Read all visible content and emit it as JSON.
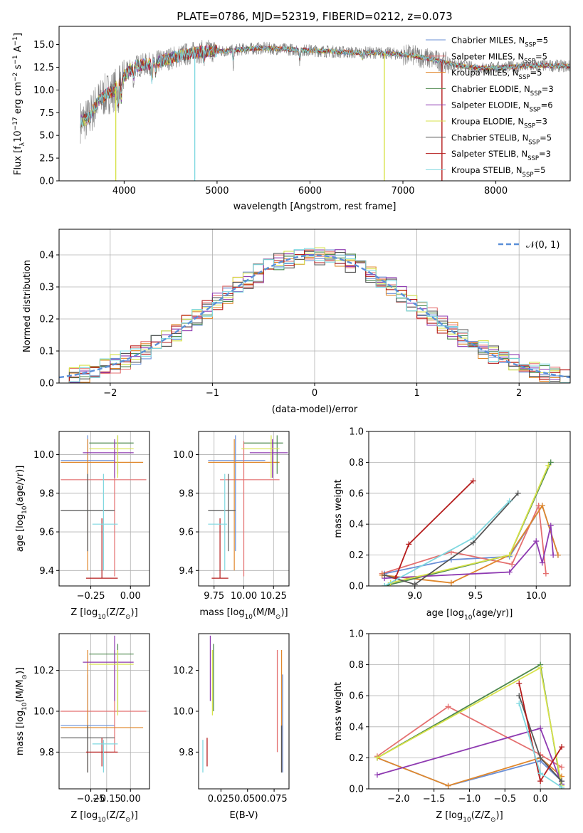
{
  "figure_title": "PLATE=0786, MJD=52319, FIBERID=0212, z=0.073",
  "colors": {
    "Chabrier MILES": "#6a8fd6",
    "Salpeter MILES": "#e46f6f",
    "Kroupa MILES": "#e0872b",
    "Chabrier ELODIE": "#4f8a4f",
    "Salpeter ELODIE": "#8e3ab1",
    "Kroupa ELODIE": "#d7e24a",
    "Chabrier STELIB": "#555555",
    "Salpeter STELIB": "#b51c1c",
    "Kroupa STELIB": "#7fd8e0",
    "observed": "#7f7f7f",
    "normal": "#5a8fd8",
    "pink": "#e67fb8"
  },
  "chart_data": [
    {
      "id": "spectrum",
      "type": "line",
      "title": "PLATE=0786, MJD=52319, FIBERID=0212, z=0.073",
      "xlabel": "wavelength [Angstrom, rest frame]",
      "ylabel": "Flux [f",
      "xlim": [
        3300,
        8800
      ],
      "ylim": [
        0,
        17
      ],
      "xticks": [
        4000,
        5000,
        6000,
        7000,
        8000
      ],
      "yticks": [
        0.0,
        2.5,
        5.0,
        7.5,
        10.0,
        12.5,
        15.0
      ],
      "ytick_labels": [
        "0.0",
        "2.5",
        "5.0",
        "7.5",
        "10.0",
        "12.5",
        "15.0"
      ],
      "ylabel_parts": [
        "Flux [f",
        "λ",
        "10",
        "−17",
        " erg cm",
        "−2",
        " s",
        "−1",
        " A",
        "−1",
        "]"
      ],
      "continuum": [
        [
          3530,
          6.5
        ],
        [
          3620,
          6.9
        ],
        [
          3700,
          8.5
        ],
        [
          3800,
          9.5
        ],
        [
          3900,
          10.0
        ],
        [
          4000,
          11.5
        ],
        [
          4100,
          12.6
        ],
        [
          4300,
          12.9
        ],
        [
          4500,
          13.5
        ],
        [
          4700,
          14.0
        ],
        [
          4900,
          14.3
        ],
        [
          5100,
          14.3
        ],
        [
          5300,
          14.5
        ],
        [
          5500,
          14.6
        ],
        [
          5700,
          14.5
        ],
        [
          5900,
          14.4
        ],
        [
          6100,
          14.3
        ],
        [
          6300,
          14.2
        ],
        [
          6500,
          14.1
        ],
        [
          6700,
          14.1
        ],
        [
          6900,
          14.0
        ],
        [
          7100,
          13.8
        ],
        [
          7300,
          13.4
        ],
        [
          7500,
          12.9
        ],
        [
          7700,
          12.5
        ],
        [
          7900,
          12.4
        ],
        [
          8100,
          12.5
        ],
        [
          8300,
          12.6
        ],
        [
          8500,
          12.7
        ],
        [
          8800,
          12.6
        ]
      ],
      "legend_position": "top-right",
      "legend": [
        "Chabrier MILES, N",
        "Salpeter MILES, N",
        "Kroupa MILES, N",
        "Chabrier ELODIE, N",
        "Salpeter ELODIE, N",
        "Kroupa ELODIE, N",
        "Chabrier STELIB, N",
        "Salpeter STELIB, N",
        "Kroupa STELIB, N"
      ],
      "legend_sub": "SSP",
      "legend_n": [
        "=5",
        "=5",
        "=5",
        "=3",
        "=6",
        "=3",
        "=5",
        "=3",
        "=5"
      ]
    },
    {
      "id": "residuals",
      "type": "bar",
      "xlabel": "(data-model)/error",
      "ylabel": "Normed distribution",
      "xlim": [
        -2.5,
        2.5
      ],
      "ylim": [
        0,
        0.48
      ],
      "xticks": [
        -2,
        -1,
        0,
        1,
        2
      ],
      "xtick_labels": [
        "−2",
        "−1",
        "0",
        "1",
        "2"
      ],
      "yticks": [
        0.0,
        0.1,
        0.2,
        0.3,
        0.4
      ],
      "ytick_labels": [
        "0.0",
        "0.1",
        "0.2",
        "0.3",
        "0.4"
      ],
      "bin_width": 0.1,
      "legend": "𝒩(0, 1)",
      "legend_position": "top-right"
    },
    {
      "id": "z-age",
      "type": "scatter",
      "xlabel": "Z [log",
      "xlabel_parts": [
        "Z [log",
        "10",
        "(Z/Z",
        "⊙",
        ")]"
      ],
      "ylabel": "age  [log",
      "ylabel_parts": [
        "age  [log",
        "10",
        "(age/yr)]"
      ],
      "xlim": [
        -0.45,
        0.12
      ],
      "ylim": [
        9.32,
        10.12
      ],
      "xticks": [
        -0.25,
        0.0
      ],
      "xtick_labels": [
        "−0.25",
        "0.00"
      ],
      "yticks": [
        9.4,
        9.6,
        9.8,
        10.0
      ],
      "ytick_labels": [
        "9.4",
        "9.6",
        "9.8",
        "10.0"
      ]
    },
    {
      "id": "mass-age",
      "type": "scatter",
      "xlabel": "mass [log",
      "xlabel_parts": [
        "mass [log",
        "10",
        "(M/M",
        "⊙",
        ")]"
      ],
      "xlim": [
        9.62,
        10.38
      ],
      "ylim": [
        9.32,
        10.12
      ],
      "xticks": [
        9.75,
        10.0,
        10.25
      ],
      "xtick_labels": [
        "9.75",
        "10.00",
        "10.25"
      ],
      "yticks": [
        9.4,
        9.6,
        9.8,
        10.0
      ],
      "ytick_labels": [
        "9.4",
        "9.6",
        "9.8",
        "10.0"
      ]
    },
    {
      "id": "age-weight",
      "type": "line",
      "xlabel": "age  [log",
      "xlabel_parts": [
        "age  [log",
        "10",
        "(age/yr)]"
      ],
      "ylabel": "mass weight",
      "xlim": [
        8.62,
        10.28
      ],
      "ylim": [
        0,
        1
      ],
      "xticks": [
        9.0,
        9.5,
        10.0
      ],
      "xtick_labels": [
        "9.0",
        "9.5",
        "10.0"
      ],
      "yticks": [
        0.0,
        0.2,
        0.4,
        0.6,
        0.8,
        1.0
      ],
      "ytick_labels": [
        "0.0",
        "0.2",
        "0.4",
        "0.6",
        "0.8",
        "1.0"
      ]
    },
    {
      "id": "z-mass",
      "type": "scatter",
      "xlabel": "Z [log",
      "xlabel_parts": [
        "Z [log",
        "10",
        "(Z/Z",
        "⊙",
        ")]"
      ],
      "ylabel": "mass [log",
      "ylabel_parts": [
        "mass [log",
        "10",
        "(M/M",
        "⊙",
        ")]"
      ],
      "xlim": [
        -0.45,
        0.12
      ],
      "ylim": [
        9.62,
        10.38
      ],
      "xticks": [
        -0.25,
        -0.15,
        0.0
      ],
      "xtick_labels": [
        "−0.25",
        "−0.15",
        "0.00"
      ],
      "yticks": [
        9.8,
        10.0,
        10.2
      ],
      "ytick_labels": [
        "9.8",
        "10.0",
        "10.2"
      ]
    },
    {
      "id": "ebv-mass",
      "type": "scatter",
      "xlabel": "E(B-V)",
      "xlim": [
        0.004,
        0.089
      ],
      "ylim": [
        9.62,
        10.38
      ],
      "xticks": [
        0.025,
        0.05,
        0.075
      ],
      "xtick_labels": [
        "0.025",
        "0.050",
        "0.075"
      ],
      "yticks": [
        9.8,
        10.0,
        10.2
      ],
      "ytick_labels": [
        "9.8",
        "10.0",
        "10.2"
      ]
    },
    {
      "id": "z-weight",
      "type": "line",
      "xlabel": "Z [log",
      "xlabel_parts": [
        "Z [log",
        "10",
        "(Z/Z",
        "⊙",
        ")]"
      ],
      "ylabel": "mass weight",
      "xlim": [
        -2.42,
        0.42
      ],
      "ylim": [
        0,
        1
      ],
      "xticks": [
        -2.0,
        -1.5,
        -1.0,
        -0.5,
        0.0
      ],
      "xtick_labels": [
        "−2.0",
        "−1.5",
        "−1.0",
        "−0.5",
        "0.0"
      ],
      "yticks": [
        0.0,
        0.2,
        0.4,
        0.6,
        0.8,
        1.0
      ],
      "ytick_labels": [
        "0.0",
        "0.2",
        "0.4",
        "0.6",
        "0.8",
        "1.0"
      ]
    }
  ],
  "models": [
    {
      "name": "Chabrier MILES",
      "Z": -0.27,
      "Zlo": -0.44,
      "Zhi": -0.1,
      "age": 9.97,
      "alo": 9.5,
      "ahi": 10.1,
      "mass": 9.93,
      "mlo": 9.7,
      "mhi": 10.18,
      "ebv": 0.083,
      "elo": 0.071,
      "ehi": 0.087,
      "ages": [
        8.75,
        9.3,
        9.78,
        10.05,
        10.18
      ],
      "aw": [
        0.08,
        0.17,
        0.19,
        0.52,
        0.2
      ],
      "Zs": [
        -2.3,
        -1.3,
        0.0,
        0.3
      ],
      "zw": [
        0.2,
        0.02,
        0.18,
        0.05
      ]
    },
    {
      "name": "Salpeter MILES",
      "Z": -0.1,
      "Zlo": -0.44,
      "Zhi": 0.1,
      "age": 9.87,
      "alo": 9.37,
      "ahi": 10.07,
      "mass": 10.0,
      "mlo": 9.8,
      "mhi": 10.3,
      "ebv": 0.078,
      "elo": 0.071,
      "ehi": 0.087,
      "ages": [
        8.73,
        9.3,
        9.8,
        10.02,
        10.08
      ],
      "aw": [
        0.08,
        0.22,
        0.14,
        0.52,
        0.08
      ],
      "Zs": [
        -2.3,
        -1.3,
        0.0,
        0.3
      ],
      "zw": [
        0.21,
        0.53,
        0.22,
        0.14
      ]
    },
    {
      "name": "Kroupa MILES",
      "Z": -0.27,
      "Zlo": -0.44,
      "Zhi": 0.08,
      "age": 9.96,
      "alo": 9.4,
      "ahi": 10.08,
      "mass": 9.92,
      "mlo": 9.7,
      "mhi": 10.3,
      "ebv": 0.082,
      "elo": 0.071,
      "ehi": 0.087,
      "ages": [
        8.73,
        9.3,
        9.78,
        10.05,
        10.18
      ],
      "aw": [
        0.07,
        0.02,
        0.2,
        0.52,
        0.2
      ],
      "Zs": [
        -2.3,
        -1.3,
        0.0,
        0.3
      ],
      "zw": [
        0.2,
        0.02,
        0.2,
        0.08
      ]
    },
    {
      "name": "Chabrier ELODIE",
      "Z": -0.08,
      "Zlo": -0.26,
      "Zhi": 0.02,
      "age": 10.06,
      "alo": 9.9,
      "ahi": 10.1,
      "mass": 10.28,
      "mlo": 10.0,
      "mhi": 10.33,
      "ebv": 0.018,
      "elo": 0.01,
      "ehi": 0.02,
      "ages": [
        8.75,
        9.78,
        10.12
      ],
      "aw": [
        0.0,
        0.2,
        0.8
      ],
      "Zs": [
        -2.3,
        0.0,
        0.3
      ],
      "zw": [
        0.2,
        0.8,
        0.0
      ]
    },
    {
      "name": "Salpeter ELODIE",
      "Z": -0.1,
      "Zlo": -0.3,
      "Zhi": 0.02,
      "age": 10.01,
      "alo": 9.88,
      "ahi": 10.08,
      "mass": 10.24,
      "mlo": 10.05,
      "mhi": 10.37,
      "ebv": 0.015,
      "elo": 0.008,
      "ehi": 0.022,
      "ages": [
        8.75,
        9.78,
        10.0,
        10.05,
        10.12,
        10.14
      ],
      "aw": [
        0.05,
        0.09,
        0.29,
        0.15,
        0.39,
        0.2
      ],
      "Zs": [
        -2.3,
        0.0,
        0.3
      ],
      "zw": [
        0.09,
        0.39,
        0.03
      ]
    },
    {
      "name": "Kroupa ELODIE",
      "Z": -0.08,
      "Zlo": -0.26,
      "Zhi": 0.02,
      "age": 10.03,
      "alo": 9.88,
      "ahi": 10.1,
      "mass": 10.23,
      "mlo": 9.98,
      "mhi": 10.3,
      "ebv": 0.017,
      "elo": 0.01,
      "ehi": 0.02,
      "ages": [
        8.8,
        9.78,
        10.1
      ],
      "aw": [
        0.02,
        0.2,
        0.78
      ],
      "Zs": [
        -2.3,
        0.0,
        0.3
      ],
      "zw": [
        0.2,
        0.78,
        0.02
      ]
    },
    {
      "name": "Chabrier STELIB",
      "Z": -0.27,
      "Zlo": -0.44,
      "Zhi": -0.1,
      "age": 9.71,
      "alo": 9.5,
      "ahi": 9.9,
      "mass": 9.87,
      "mlo": 9.7,
      "mhi": 9.93,
      "ebv": 0.082,
      "elo": 0.074,
      "ehi": 0.088,
      "ages": [
        8.75,
        9.0,
        9.48,
        9.85
      ],
      "aw": [
        0.07,
        0.01,
        0.28,
        0.6
      ],
      "Zs": [
        -0.3,
        0.0,
        0.3
      ],
      "zw": [
        0.6,
        0.2,
        0.05
      ]
    },
    {
      "name": "Salpeter STELIB",
      "Z": -0.18,
      "Zlo": -0.28,
      "Zhi": -0.08,
      "age": 9.36,
      "alo": 9.36,
      "ahi": 9.67,
      "mass": 9.8,
      "mlo": 9.73,
      "mhi": 9.87,
      "ebv": 0.012,
      "elo": 0.007,
      "ehi": 0.02,
      "ages": [
        8.84,
        8.95,
        9.48
      ],
      "aw": [
        0.05,
        0.27,
        0.68
      ],
      "Zs": [
        -0.3,
        0.0,
        0.3
      ],
      "zw": [
        0.68,
        0.05,
        0.27
      ]
    },
    {
      "name": "Kroupa STELIB",
      "Z": -0.17,
      "Zlo": -0.24,
      "Zhi": -0.08,
      "age": 9.64,
      "alo": 9.4,
      "ahi": 9.9,
      "mass": 9.84,
      "mlo": 9.7,
      "mhi": 9.86,
      "ebv": 0.008,
      "elo": 0.004,
      "ehi": 0.014,
      "ages": [
        8.75,
        9.48,
        9.78
      ],
      "aw": [
        0.0,
        0.31,
        0.55
      ],
      "Zs": [
        -0.3,
        0.0,
        0.3
      ],
      "zw": [
        0.55,
        0.1,
        0.01
      ]
    }
  ]
}
